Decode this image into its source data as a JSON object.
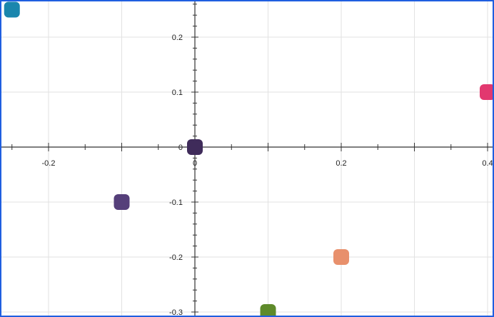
{
  "chart_data": {
    "type": "scatter",
    "title": "",
    "xlabel": "",
    "ylabel": "",
    "xlim": [
      -0.265,
      0.41
    ],
    "ylim": [
      -0.305,
      0.26
    ],
    "grid": true,
    "x_ticks": [
      {
        "value": -0.2,
        "label": "-0.2"
      },
      {
        "value": 0.2,
        "label": "0.2"
      },
      {
        "value": 0.4,
        "label": "0.4"
      }
    ],
    "y_ticks": [
      {
        "value": 0.2,
        "label": "0.2"
      },
      {
        "value": 0.1,
        "label": "0.1"
      },
      {
        "value": 0,
        "label": "0"
      },
      {
        "value": -0.1,
        "label": "-0.1"
      },
      {
        "value": -0.2,
        "label": "-0.2"
      },
      {
        "value": -0.3,
        "label": "-0.3"
      }
    ],
    "x_origin_label": "0",
    "points": [
      {
        "x": -0.25,
        "y": 0.25,
        "color": "#1a86ad"
      },
      {
        "x": 0.4,
        "y": 0.1,
        "color": "#e2386f"
      },
      {
        "x": 0.0,
        "y": 0.0,
        "color": "#3f2b5a"
      },
      {
        "x": -0.1,
        "y": -0.1,
        "color": "#553f7a"
      },
      {
        "x": 0.2,
        "y": -0.2,
        "color": "#e8906c"
      },
      {
        "x": 0.1,
        "y": -0.3,
        "color": "#5e8a2a"
      }
    ],
    "colors": {
      "axis": "#333333",
      "grid": "#e2e2e2",
      "frame": "#1f5fe0"
    }
  }
}
